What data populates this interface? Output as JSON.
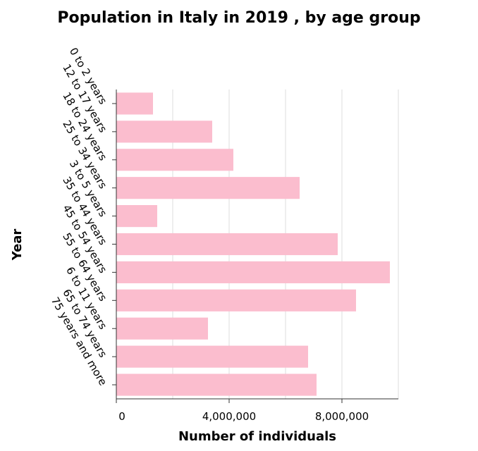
{
  "chart_data": {
    "type": "bar",
    "orientation": "horizontal",
    "title": "Population in Italy in 2019 , by age group",
    "xlabel": "Number of individuals",
    "ylabel": "Year",
    "categories": [
      "0 to 2 years",
      "12 to 17 years",
      "18 to 24 years",
      "25 to 34 years",
      "3 to 5 years",
      "35 to 44 years",
      "45 to 54 years",
      "55 to 64 years",
      "6 to 11 years",
      "65 to 74 years",
      "75 years and more"
    ],
    "values": [
      1300000,
      3400000,
      4150000,
      6500000,
      1450000,
      7850000,
      9700000,
      8500000,
      3250000,
      6800000,
      7100000
    ],
    "xlim": [
      0,
      10000000
    ],
    "xticks": [
      0,
      4000000,
      8000000
    ],
    "xtick_labels": [
      "0",
      "4,000,000",
      "8,000,000"
    ],
    "grid": true,
    "bar_color": "#fbbdce"
  }
}
